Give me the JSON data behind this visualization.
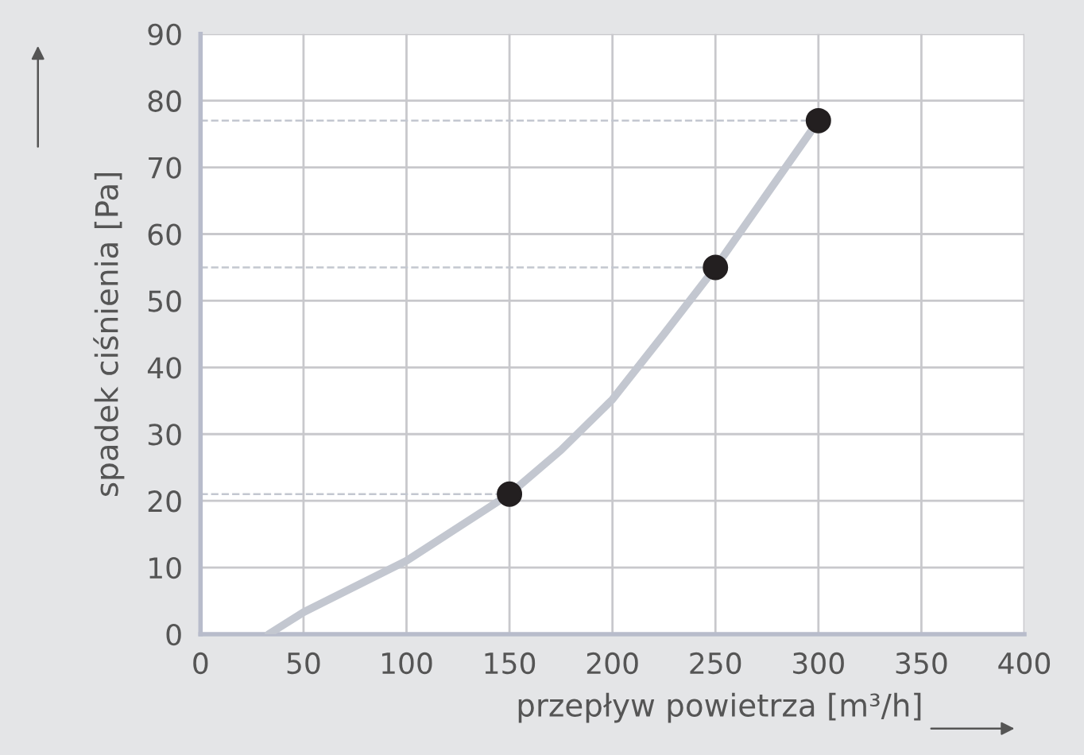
{
  "chart_data": {
    "type": "line",
    "xlabel": "przepływ powietrza [m³/h]",
    "ylabel": "spadek ciśnienia [Pa]",
    "xlim": [
      0,
      400
    ],
    "xticks": [
      0,
      50,
      100,
      150,
      200,
      250,
      300,
      350,
      400
    ],
    "ylim": [
      0,
      90
    ],
    "yticks": [
      0,
      10,
      20,
      30,
      40,
      50,
      60,
      70,
      80,
      90
    ],
    "grid": true,
    "series": [
      {
        "color": "#c3c7d0",
        "x": [
          33,
          50,
          100,
          150,
          175,
          200,
          225,
          250,
          275,
          300
        ],
        "values": [
          0,
          3.3,
          11,
          21,
          27.6,
          35.2,
          45,
          55,
          66,
          77
        ]
      },
      {
        "type": "scatter",
        "color": "#231f20",
        "marker": "circle",
        "x": [
          150,
          250,
          300
        ],
        "values": [
          21,
          55,
          77
        ]
      }
    ],
    "ref_lines": [
      {
        "axis": "y",
        "value": 21,
        "color": "#c3c7d0",
        "line_style": "dashed"
      },
      {
        "axis": "y",
        "value": 55,
        "color": "#c3c7d0",
        "line_style": "dashed"
      },
      {
        "axis": "y",
        "value": 77,
        "color": "#c3c7d0",
        "line_style": "dashed"
      }
    ]
  }
}
